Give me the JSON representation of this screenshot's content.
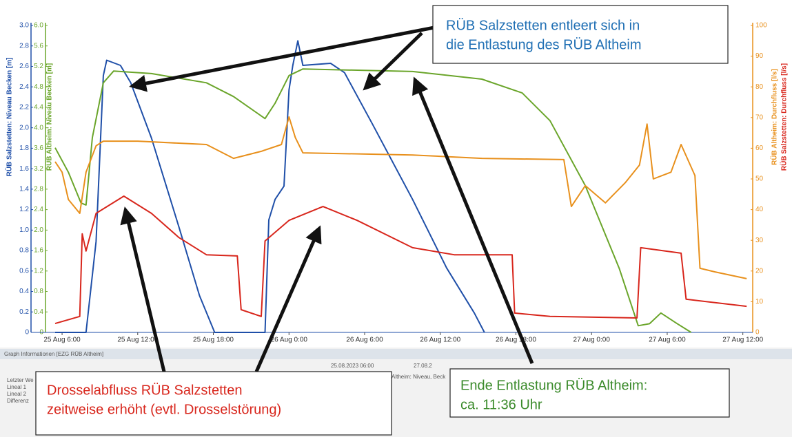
{
  "chart_data": {
    "type": "line",
    "xlim": [
      5.45,
      60.4
    ],
    "xticks": [
      {
        "value": 6,
        "label": "25 Aug 6:00"
      },
      {
        "value": 12,
        "label": "25 Aug 12:00"
      },
      {
        "value": 18,
        "label": "25 Aug 18:00"
      },
      {
        "value": 24,
        "label": "26 Aug 0:00"
      },
      {
        "value": 30,
        "label": "26 Aug 6:00"
      },
      {
        "value": 36,
        "label": "26 Aug 12:00"
      },
      {
        "value": 42,
        "label": "26 Aug 18:00"
      },
      {
        "value": 48,
        "label": "27 Aug 0:00"
      },
      {
        "value": 54,
        "label": "27 Aug 6:00"
      },
      {
        "value": 60,
        "label": "27 Aug 12:00"
      }
    ],
    "axes": [
      {
        "label": "RÜB Salzstetten: Niveau Becken [m]",
        "color": "#1f4fa8",
        "side": "left",
        "lim": [
          0,
          3
        ],
        "ticks": [
          0,
          0.2,
          0.4,
          0.6,
          0.8,
          {
            "value": 1,
            "label": "1.0"
          },
          1.2,
          1.4,
          1.6,
          1.8,
          {
            "value": 2,
            "label": "2.0"
          },
          2.2,
          2.4,
          2.6,
          2.8,
          {
            "value": 3,
            "label": "3.0"
          }
        ]
      },
      {
        "label": "RÜB Altheim: Niveau Becken [m]",
        "color": "#6aa52a",
        "side": "left",
        "lim": [
          0,
          6
        ],
        "ticks": [
          0,
          0.4,
          0.8,
          1.2,
          1.6,
          {
            "value": 2,
            "label": "2.0"
          },
          2.4,
          2.8,
          3.2,
          3.6,
          {
            "value": 4,
            "label": "4.0"
          },
          4.4,
          4.8,
          5.2,
          5.6,
          {
            "value": 6,
            "label": "6.0"
          }
        ]
      },
      {
        "label": "RÜB Altheim: Durchfluss [l/s]",
        "color": "#e8901c",
        "side": "right",
        "lim": [
          0,
          100
        ],
        "ticks": [
          0,
          10,
          20,
          30,
          40,
          50,
          60,
          70,
          80,
          90,
          100
        ]
      },
      {
        "label": "RÜB Salzstetten: Durchfluss [l/s]",
        "color": "#d8261c",
        "side": "right",
        "lim": [
          0,
          100
        ],
        "ticks": []
      }
    ],
    "series": [
      {
        "color": "#1f4fa8",
        "axis": 0,
        "x": [
          5.45,
          7.9,
          8.7,
          9.27,
          9.54,
          10.63,
          11.45,
          13.09,
          15.27,
          16.9,
          18.1,
          22.1,
          22.4,
          22.9,
          23.6,
          24.0,
          24.3,
          24.7,
          25.1,
          27.3,
          28.4,
          30.6,
          33.8,
          36.5,
          38.7,
          39.5
        ],
        "values": [
          0,
          0,
          0.89,
          2.51,
          2.66,
          2.61,
          2.44,
          1.9,
          1.03,
          0.36,
          0,
          0,
          1.1,
          1.3,
          1.43,
          2.37,
          2.61,
          2.85,
          2.61,
          2.63,
          2.54,
          2.04,
          1.3,
          0.63,
          0.19,
          0
        ]
      },
      {
        "color": "#6aa52a",
        "axis": 1,
        "x": [
          5.45,
          6.5,
          7.5,
          7.9,
          8.4,
          9.27,
          10.09,
          13.09,
          17.45,
          19.6,
          22.1,
          22.9,
          24.0,
          25.1,
          33.8,
          39.3,
          42.5,
          44.7,
          47.5,
          50.2,
          51.7,
          52.6,
          53.5,
          54.8,
          55.9
        ],
        "values": [
          3.61,
          3.13,
          2.53,
          2.49,
          3.81,
          4.88,
          5.11,
          5.06,
          4.88,
          4.61,
          4.18,
          4.48,
          5.02,
          5.15,
          5.1,
          4.95,
          4.68,
          4.14,
          2.87,
          1.25,
          0.13,
          0.17,
          0.38,
          0.17,
          0
        ]
      },
      {
        "color": "#e8901c",
        "axis": 2,
        "x": [
          5.45,
          6.0,
          6.5,
          7.4,
          7.9,
          8.7,
          9.27,
          12.0,
          17.45,
          19.6,
          21.8,
          23.4,
          24.0,
          24.5,
          25.1,
          33.8,
          39.3,
          45.8,
          46.4,
          47.5,
          49.1,
          50.7,
          51.8,
          52.4,
          52.9,
          54.3,
          55.1,
          56.2,
          56.6,
          57.8,
          60.3
        ],
        "values": [
          55.6,
          52.2,
          43.3,
          38.8,
          52.2,
          60.8,
          62.3,
          62.3,
          61.2,
          56.7,
          59.0,
          61.2,
          70.2,
          63.5,
          58.5,
          57.8,
          56.7,
          56.3,
          41.0,
          47.8,
          42.2,
          48.9,
          54.5,
          67.9,
          50.0,
          52.2,
          61.2,
          51.1,
          20.9,
          19.7,
          17.5
        ]
      },
      {
        "color": "#d8261c",
        "axis": 3,
        "x": [
          5.45,
          7.4,
          7.6,
          7.9,
          8.7,
          10.9,
          13.09,
          15.27,
          17.45,
          19.9,
          20.2,
          21.8,
          22.1,
          24.0,
          26.7,
          29.4,
          33.8,
          37.1,
          41.7,
          41.9,
          44.7,
          51.6,
          51.9,
          55.1,
          55.5,
          60.3
        ],
        "values": [
          2.9,
          5.2,
          32.1,
          26.5,
          38.8,
          44.4,
          38.8,
          30.9,
          25.3,
          24.9,
          7.4,
          5.2,
          29.8,
          36.5,
          41.0,
          36.5,
          27.6,
          25.3,
          25.3,
          6.3,
          5.2,
          4.7,
          27.6,
          25.8,
          10.8,
          8.5
        ]
      }
    ],
    "annotations": [
      {
        "color": "#1f6fb4",
        "lines": [
          "RÜB Salzstetten entleert sich in",
          "die Entlastung des RÜB Altheim"
        ]
      },
      {
        "color": "#d8261c",
        "lines": [
          "Drosselabfluss RÜB Salzstetten",
          "zeitweise erhöht (evtl. Drosselstörung)"
        ]
      },
      {
        "color": "#3a8a2a",
        "lines": [
          "Ende Entlastung RÜB Altheim:",
          "ca. 11:36 Uhr"
        ]
      }
    ]
  },
  "panel": {
    "title": "Graph Informationen [EZG RÜB Altheim]",
    "from": "25.08.2023 06:00",
    "to": "27.08.2",
    "column": "Altheim: Niveau, Beck",
    "rows": [
      "Letzter We",
      "Lineal 1",
      "Lineal 2",
      "Differenz"
    ]
  }
}
